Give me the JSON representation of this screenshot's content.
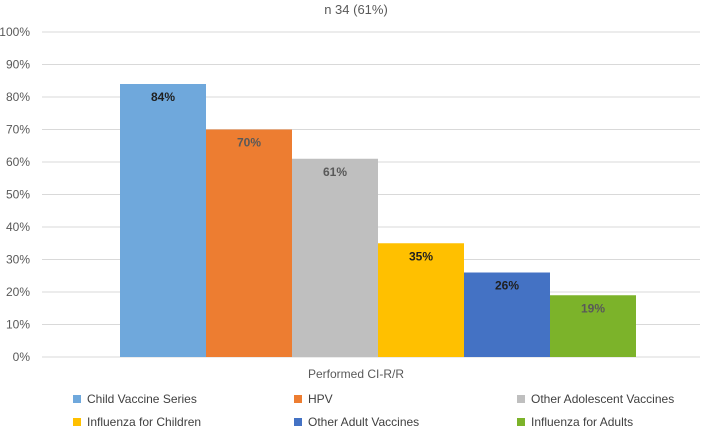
{
  "chart_data": {
    "type": "bar",
    "title": "n  34 (61%)",
    "xlabel": "Performed CI-R/R",
    "ylabel": "",
    "ylim": [
      0,
      100
    ],
    "y_ticks": [
      "0%",
      "10%",
      "20%",
      "30%",
      "40%",
      "50%",
      "60%",
      "70%",
      "80%",
      "90%",
      "100%"
    ],
    "grid": true,
    "legend_position": "bottom",
    "series": [
      {
        "name": "Child Vaccine Series",
        "value": 84,
        "label": "84%",
        "color": "#6fa8dc",
        "label_color": "#1f1f1f",
        "label_bold": true
      },
      {
        "name": "HPV",
        "value": 70,
        "label": "70%",
        "color": "#ed7d31",
        "label_color": "#595959",
        "label_bold": true
      },
      {
        "name": "Other Adolescent Vaccines",
        "value": 61,
        "label": "61%",
        "color": "#bfbfbf",
        "label_color": "#595959",
        "label_bold": true
      },
      {
        "name": "Influenza for Children",
        "value": 35,
        "label": "35%",
        "color": "#ffc000",
        "label_color": "#1f1f1f",
        "label_bold": true
      },
      {
        "name": "Other Adult Vaccines",
        "value": 26,
        "label": "26%",
        "color": "#4472c4",
        "label_color": "#1f1f1f",
        "label_bold": true
      },
      {
        "name": "Influenza for Adults",
        "value": 19,
        "label": "19%",
        "color": "#7cb32a",
        "label_color": "#595959",
        "label_bold": true
      }
    ]
  }
}
